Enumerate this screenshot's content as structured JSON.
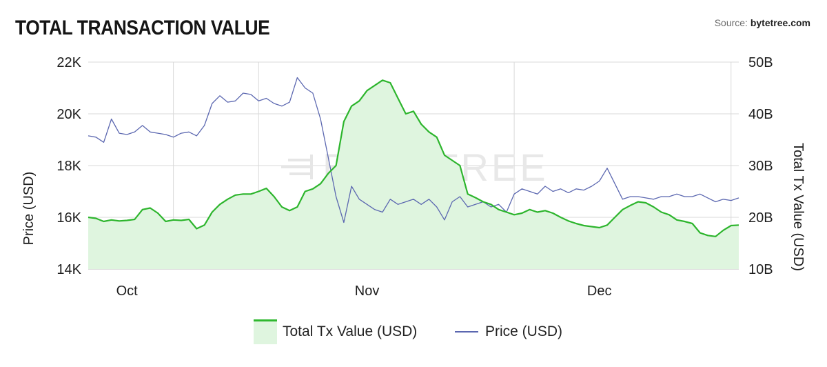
{
  "header": {
    "title": "TOTAL TRANSACTION VALUE",
    "source_prefix": "Source: ",
    "source_name": "bytetree.com"
  },
  "watermark": "BYTETREE",
  "colors": {
    "tx_line": "#2db52d",
    "tx_fill": "#dff5df",
    "price_line": "#5b67b0",
    "grid": "#d9d9d9"
  },
  "chart_data": {
    "type": "line",
    "title": "TOTAL TRANSACTION VALUE",
    "x_ticks": [
      {
        "label": "Oct",
        "day": 16
      },
      {
        "label": "Nov",
        "day": 47
      },
      {
        "label": "Dec",
        "day": 77
      }
    ],
    "x_range": [
      11,
      95
    ],
    "grid": true,
    "legend_position": "bottom-center",
    "y_left": {
      "label": "Price (USD)",
      "range": [
        14000,
        22000
      ],
      "ticks": [
        14000,
        16000,
        18000,
        20000,
        22000
      ],
      "tick_labels": [
        "14K",
        "16K",
        "18K",
        "20K",
        "22K"
      ]
    },
    "y_right": {
      "label": "Total Tx Value (USD)",
      "range": [
        10,
        50
      ],
      "ticks": [
        10,
        20,
        30,
        40,
        50
      ],
      "tick_labels": [
        "10B",
        "20B",
        "30B",
        "40B",
        "50B"
      ]
    },
    "series": [
      {
        "name": "Total Tx Value (USD)",
        "axis": "right",
        "style": "area",
        "points": [
          [
            11,
            20.0
          ],
          [
            12,
            19.8
          ],
          [
            13,
            19.2
          ],
          [
            14,
            19.5
          ],
          [
            15,
            19.3
          ],
          [
            16,
            19.4
          ],
          [
            17,
            19.6
          ],
          [
            18,
            21.5
          ],
          [
            19,
            21.8
          ],
          [
            20,
            20.8
          ],
          [
            21,
            19.2
          ],
          [
            22,
            19.5
          ],
          [
            23,
            19.4
          ],
          [
            24,
            19.6
          ],
          [
            25,
            17.8
          ],
          [
            26,
            18.5
          ],
          [
            27,
            21.0
          ],
          [
            28,
            22.5
          ],
          [
            29,
            23.5
          ],
          [
            30,
            24.3
          ],
          [
            31,
            24.5
          ],
          [
            32,
            24.5
          ],
          [
            33,
            25.0
          ],
          [
            34,
            25.6
          ],
          [
            35,
            24.0
          ],
          [
            36,
            22.0
          ],
          [
            37,
            21.3
          ],
          [
            38,
            22.0
          ],
          [
            39,
            25.0
          ],
          [
            40,
            25.5
          ],
          [
            41,
            26.5
          ],
          [
            42,
            28.5
          ],
          [
            43,
            30.0
          ],
          [
            44,
            38.5
          ],
          [
            45,
            41.5
          ],
          [
            46,
            42.5
          ],
          [
            47,
            44.5
          ],
          [
            48,
            45.5
          ],
          [
            49,
            46.5
          ],
          [
            50,
            46.0
          ],
          [
            51,
            43.0
          ],
          [
            52,
            40.0
          ],
          [
            53,
            40.5
          ],
          [
            54,
            38.0
          ],
          [
            55,
            36.5
          ],
          [
            56,
            35.5
          ],
          [
            57,
            32.0
          ],
          [
            58,
            31.0
          ],
          [
            59,
            30.0
          ],
          [
            60,
            24.5
          ],
          [
            61,
            23.8
          ],
          [
            62,
            23.0
          ],
          [
            63,
            22.5
          ],
          [
            64,
            21.5
          ],
          [
            65,
            21.0
          ],
          [
            66,
            20.5
          ],
          [
            67,
            20.8
          ],
          [
            68,
            21.5
          ],
          [
            69,
            21.0
          ],
          [
            70,
            21.3
          ],
          [
            71,
            20.8
          ],
          [
            72,
            20.0
          ],
          [
            73,
            19.3
          ],
          [
            74,
            18.8
          ],
          [
            75,
            18.4
          ],
          [
            76,
            18.2
          ],
          [
            77,
            18.0
          ],
          [
            78,
            18.5
          ],
          [
            79,
            20.0
          ],
          [
            80,
            21.5
          ],
          [
            81,
            22.3
          ],
          [
            82,
            23.0
          ],
          [
            83,
            22.8
          ],
          [
            84,
            22.0
          ],
          [
            85,
            21.0
          ],
          [
            86,
            20.5
          ],
          [
            87,
            19.5
          ],
          [
            88,
            19.2
          ],
          [
            89,
            18.8
          ],
          [
            90,
            17.0
          ],
          [
            91,
            16.5
          ],
          [
            92,
            16.3
          ],
          [
            93,
            17.5
          ],
          [
            94,
            18.4
          ],
          [
            95,
            18.5
          ]
        ]
      },
      {
        "name": "Price (USD)",
        "axis": "left",
        "style": "line",
        "points": [
          [
            11,
            19150
          ],
          [
            12,
            19100
          ],
          [
            13,
            18900
          ],
          [
            14,
            19800
          ],
          [
            15,
            19250
          ],
          [
            16,
            19200
          ],
          [
            17,
            19300
          ],
          [
            18,
            19550
          ],
          [
            19,
            19300
          ],
          [
            20,
            19250
          ],
          [
            21,
            19200
          ],
          [
            22,
            19100
          ],
          [
            23,
            19250
          ],
          [
            24,
            19300
          ],
          [
            25,
            19150
          ],
          [
            26,
            19550
          ],
          [
            27,
            20400
          ],
          [
            28,
            20700
          ],
          [
            29,
            20450
          ],
          [
            30,
            20500
          ],
          [
            31,
            20800
          ],
          [
            32,
            20750
          ],
          [
            33,
            20500
          ],
          [
            34,
            20600
          ],
          [
            35,
            20400
          ],
          [
            36,
            20300
          ],
          [
            37,
            20450
          ],
          [
            38,
            21400
          ],
          [
            39,
            21000
          ],
          [
            40,
            20800
          ],
          [
            41,
            19800
          ],
          [
            42,
            18300
          ],
          [
            43,
            16800
          ],
          [
            44,
            15800
          ],
          [
            45,
            17200
          ],
          [
            46,
            16700
          ],
          [
            47,
            16500
          ],
          [
            48,
            16300
          ],
          [
            49,
            16200
          ],
          [
            50,
            16700
          ],
          [
            51,
            16500
          ],
          [
            52,
            16600
          ],
          [
            53,
            16700
          ],
          [
            54,
            16500
          ],
          [
            55,
            16700
          ],
          [
            56,
            16400
          ],
          [
            57,
            15900
          ],
          [
            58,
            16600
          ],
          [
            59,
            16800
          ],
          [
            60,
            16400
          ],
          [
            61,
            16500
          ],
          [
            62,
            16600
          ],
          [
            63,
            16400
          ],
          [
            64,
            16500
          ],
          [
            65,
            16200
          ],
          [
            66,
            16900
          ],
          [
            67,
            17100
          ],
          [
            68,
            17000
          ],
          [
            69,
            16900
          ],
          [
            70,
            17200
          ],
          [
            71,
            17000
          ],
          [
            72,
            17100
          ],
          [
            73,
            16950
          ],
          [
            74,
            17100
          ],
          [
            75,
            17050
          ],
          [
            76,
            17200
          ],
          [
            77,
            17400
          ],
          [
            78,
            17900
          ],
          [
            79,
            17300
          ],
          [
            80,
            16700
          ],
          [
            81,
            16800
          ],
          [
            82,
            16800
          ],
          [
            83,
            16750
          ],
          [
            84,
            16700
          ],
          [
            85,
            16800
          ],
          [
            86,
            16800
          ],
          [
            87,
            16900
          ],
          [
            88,
            16800
          ],
          [
            89,
            16800
          ],
          [
            90,
            16900
          ],
          [
            91,
            16750
          ],
          [
            92,
            16600
          ],
          [
            93,
            16700
          ],
          [
            94,
            16650
          ],
          [
            95,
            16750
          ]
        ]
      }
    ]
  }
}
